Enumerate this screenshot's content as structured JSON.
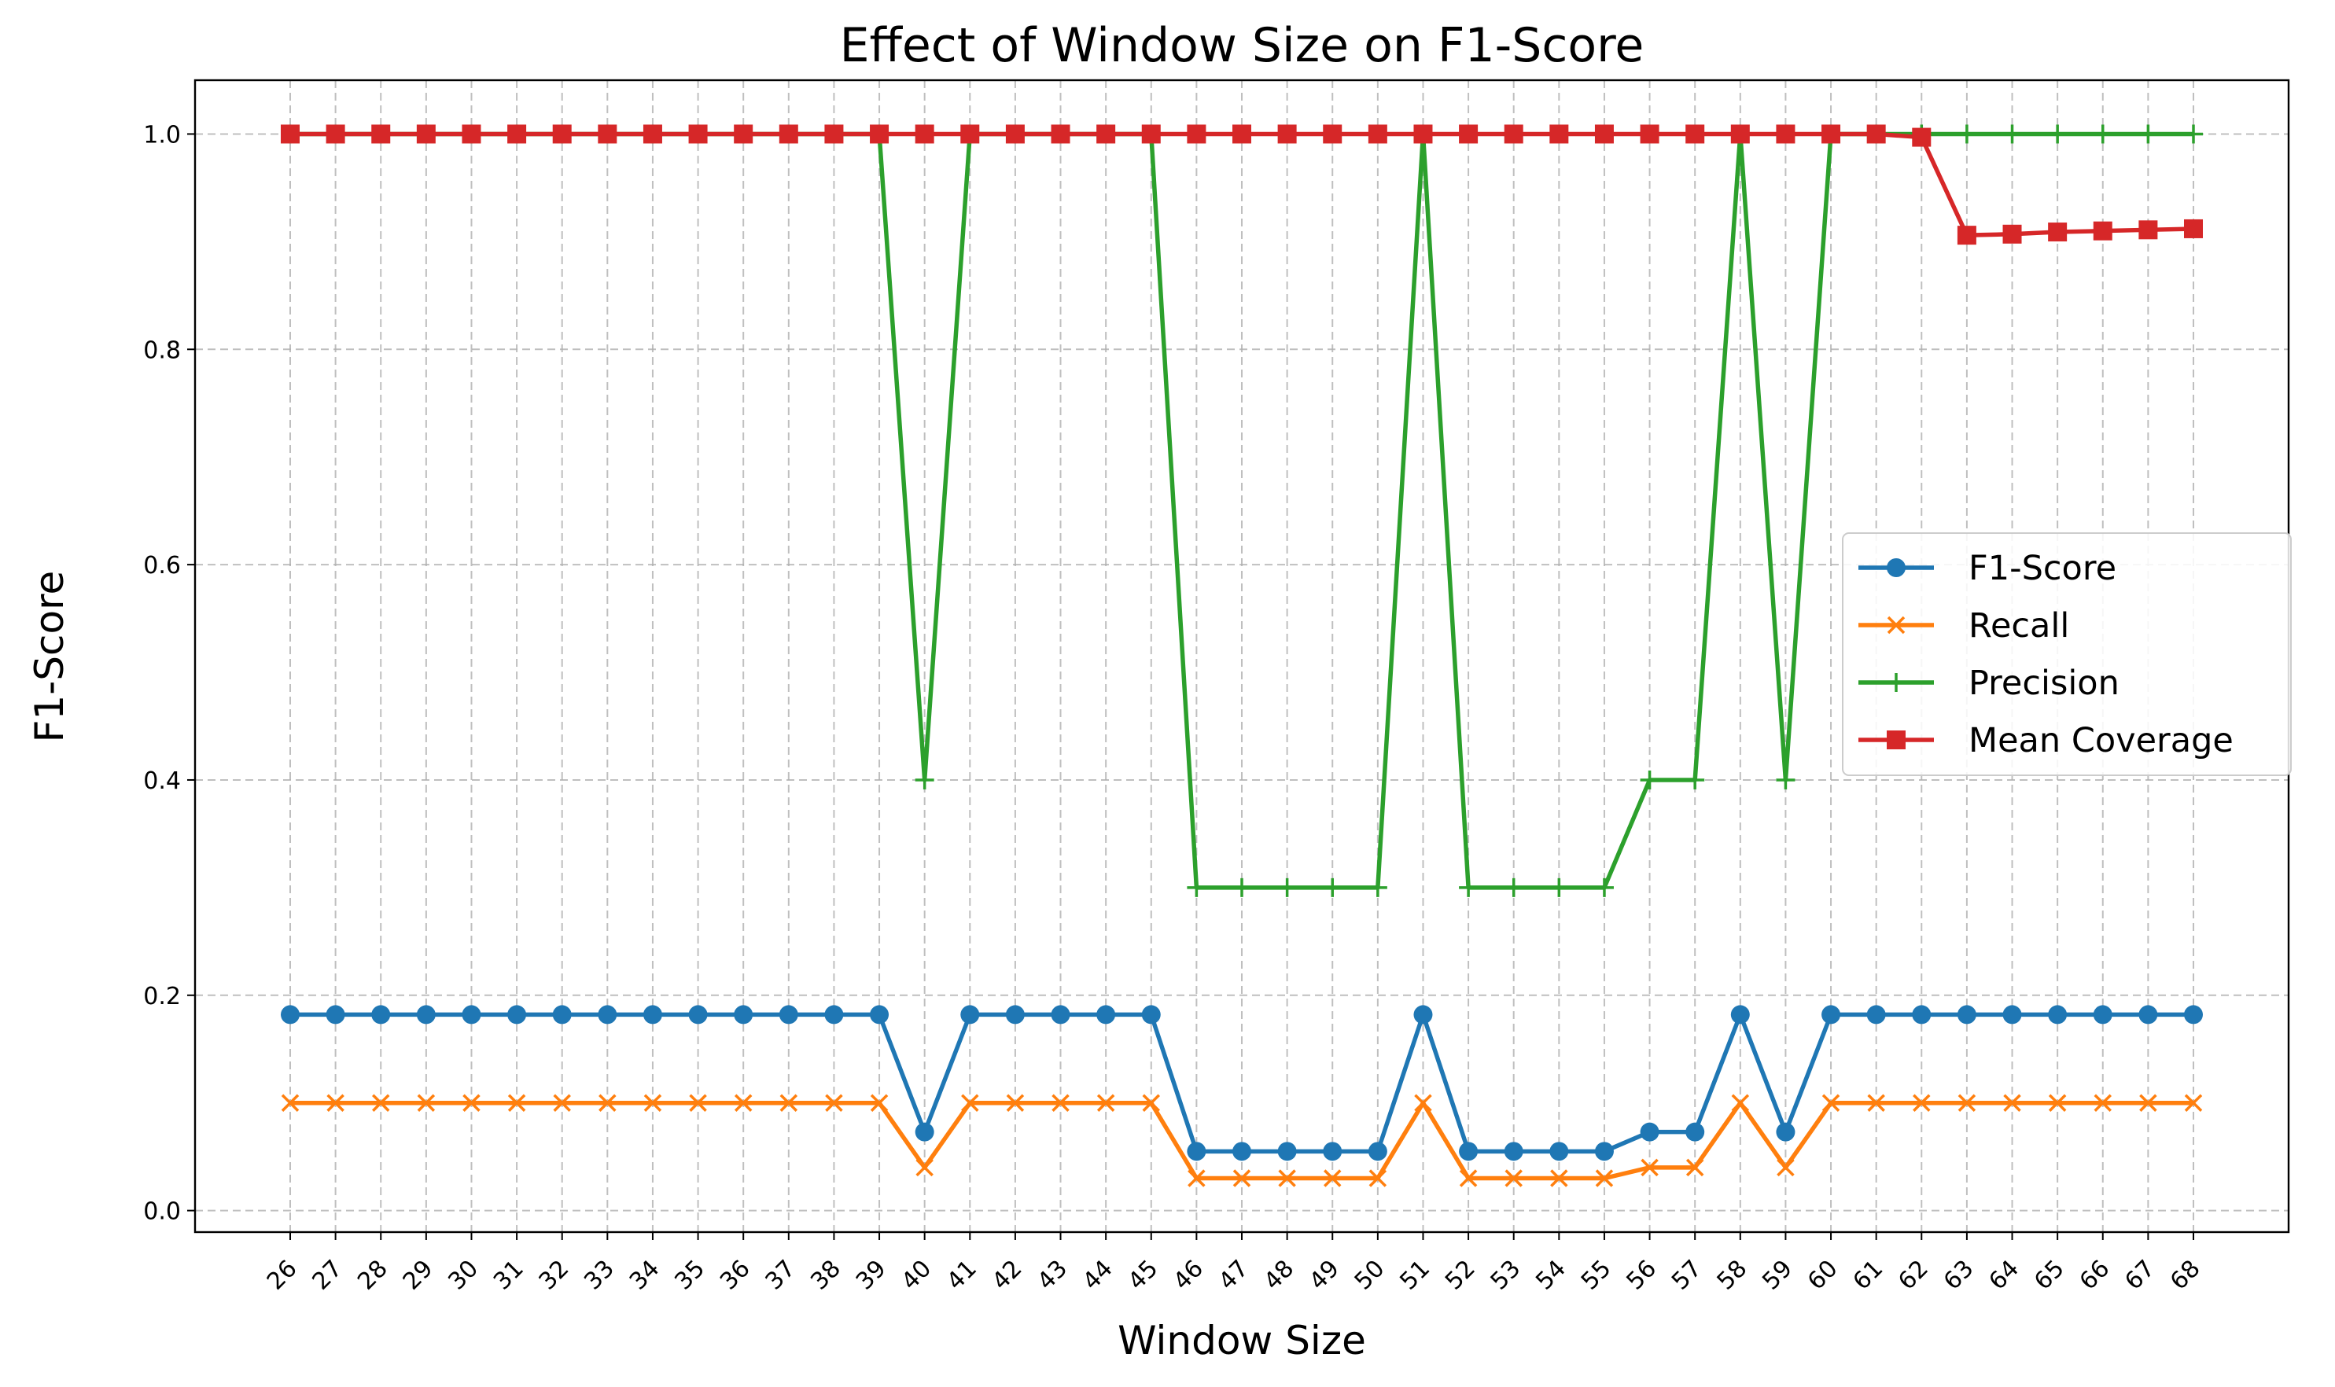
{
  "chart_data": {
    "type": "line",
    "title": "Effect of Window Size on F1-Score",
    "xlabel": "Window Size",
    "ylabel": "F1-Score",
    "x": [
      26,
      27,
      28,
      29,
      30,
      31,
      32,
      33,
      34,
      35,
      36,
      37,
      38,
      39,
      40,
      41,
      42,
      43,
      44,
      45,
      46,
      47,
      48,
      49,
      50,
      51,
      52,
      53,
      54,
      55,
      56,
      57,
      58,
      59,
      60,
      61,
      62,
      63,
      64,
      65,
      66,
      67,
      68
    ],
    "y_ticks": [
      "0.0",
      "0.2",
      "0.4",
      "0.6",
      "0.8",
      "1.0"
    ],
    "ylim": [
      -0.02,
      1.05
    ],
    "grid": true,
    "legend_position": "center-right",
    "series": [
      {
        "name": "F1-Score",
        "color": "#1f77b4",
        "marker": "circle",
        "values": [
          0.182,
          0.182,
          0.182,
          0.182,
          0.182,
          0.182,
          0.182,
          0.182,
          0.182,
          0.182,
          0.182,
          0.182,
          0.182,
          0.182,
          0.073,
          0.182,
          0.182,
          0.182,
          0.182,
          0.182,
          0.055,
          0.055,
          0.055,
          0.055,
          0.055,
          0.182,
          0.055,
          0.055,
          0.055,
          0.055,
          0.073,
          0.073,
          0.182,
          0.073,
          0.182,
          0.182,
          0.182,
          0.182,
          0.182,
          0.182,
          0.182,
          0.182,
          0.182
        ]
      },
      {
        "name": "Recall",
        "color": "#ff7f0e",
        "marker": "x",
        "values": [
          0.1,
          0.1,
          0.1,
          0.1,
          0.1,
          0.1,
          0.1,
          0.1,
          0.1,
          0.1,
          0.1,
          0.1,
          0.1,
          0.1,
          0.04,
          0.1,
          0.1,
          0.1,
          0.1,
          0.1,
          0.03,
          0.03,
          0.03,
          0.03,
          0.03,
          0.1,
          0.03,
          0.03,
          0.03,
          0.03,
          0.04,
          0.04,
          0.1,
          0.04,
          0.1,
          0.1,
          0.1,
          0.1,
          0.1,
          0.1,
          0.1,
          0.1,
          0.1
        ]
      },
      {
        "name": "Precision",
        "color": "#2ca02c",
        "marker": "plus",
        "values": [
          1.0,
          1.0,
          1.0,
          1.0,
          1.0,
          1.0,
          1.0,
          1.0,
          1.0,
          1.0,
          1.0,
          1.0,
          1.0,
          1.0,
          0.4,
          1.0,
          1.0,
          1.0,
          1.0,
          1.0,
          0.3,
          0.3,
          0.3,
          0.3,
          0.3,
          1.0,
          0.3,
          0.3,
          0.3,
          0.3,
          0.4,
          0.4,
          1.0,
          0.4,
          1.0,
          1.0,
          1.0,
          1.0,
          1.0,
          1.0,
          1.0,
          1.0,
          1.0
        ]
      },
      {
        "name": "Mean Coverage",
        "color": "#d62728",
        "marker": "square",
        "values": [
          1.0,
          1.0,
          1.0,
          1.0,
          1.0,
          1.0,
          1.0,
          1.0,
          1.0,
          1.0,
          1.0,
          1.0,
          1.0,
          1.0,
          1.0,
          1.0,
          1.0,
          1.0,
          1.0,
          1.0,
          1.0,
          1.0,
          1.0,
          1.0,
          1.0,
          1.0,
          1.0,
          1.0,
          1.0,
          1.0,
          1.0,
          1.0,
          1.0,
          1.0,
          1.0,
          1.0,
          0.997,
          0.906,
          0.907,
          0.909,
          0.91,
          0.911,
          0.912
        ]
      }
    ]
  }
}
